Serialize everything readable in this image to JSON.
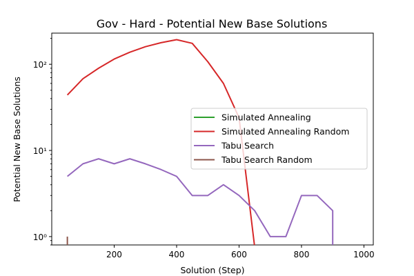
{
  "chart_data": {
    "type": "line",
    "title": "Gov - Hard - Potential New Base Solutions",
    "xlabel": "Solution (Step)",
    "ylabel": "Potential New Base Solutions",
    "xlim": [
      0,
      1030
    ],
    "ylim": [
      0.8,
      230
    ],
    "yscale": "log",
    "xticks": [
      200,
      400,
      600,
      800,
      1000
    ],
    "xtick_labels": [
      "200",
      "400",
      "600",
      "800",
      "1000"
    ],
    "yticks": [
      1,
      10,
      100
    ],
    "ytick_labels": [
      "10⁰",
      "10¹",
      "10²"
    ],
    "legend_position": "center-right",
    "series": [
      {
        "name": "Simulated Annealing",
        "color": "#2ca02c",
        "points": []
      },
      {
        "name": "Simulated Annealing Random",
        "color": "#d62728",
        "points": [
          [
            50,
            44
          ],
          [
            100,
            68
          ],
          [
            150,
            90
          ],
          [
            200,
            115
          ],
          [
            250,
            138
          ],
          [
            300,
            160
          ],
          [
            350,
            178
          ],
          [
            400,
            193
          ],
          [
            450,
            175
          ],
          [
            500,
            107
          ],
          [
            550,
            60
          ],
          [
            600,
            24
          ],
          [
            650,
            0
          ]
        ]
      },
      {
        "name": "Tabu Search",
        "color": "#9467bd",
        "points": [
          [
            50,
            5
          ],
          [
            100,
            7
          ],
          [
            150,
            8
          ],
          [
            200,
            7
          ],
          [
            250,
            8
          ],
          [
            300,
            7
          ],
          [
            350,
            6
          ],
          [
            400,
            5
          ],
          [
            450,
            3
          ],
          [
            500,
            3
          ],
          [
            550,
            4
          ],
          [
            600,
            3
          ],
          [
            650,
            2
          ],
          [
            700,
            1
          ],
          [
            750,
            1
          ],
          [
            800,
            3
          ],
          [
            850,
            3
          ],
          [
            900,
            2
          ],
          [
            900,
            0
          ]
        ]
      },
      {
        "name": "Tabu Search Random",
        "color": "#8c564b",
        "points": [
          [
            50,
            1
          ],
          [
            50,
            0
          ]
        ]
      }
    ]
  }
}
